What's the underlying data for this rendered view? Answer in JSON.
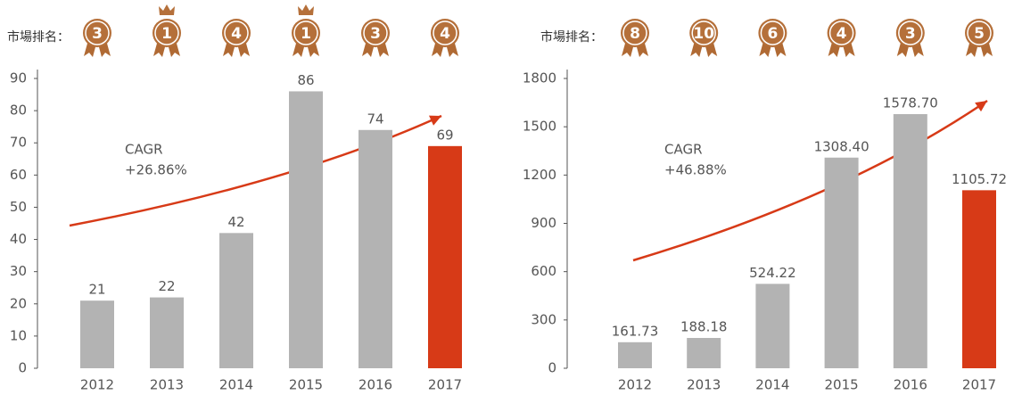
{
  "chart_data": [
    {
      "type": "bar",
      "rank_label": "市場排名：",
      "ranks": [
        3,
        1,
        4,
        1,
        3,
        4
      ],
      "annotations": [
        "CAGR",
        "+26.86%"
      ],
      "categories": [
        "2012",
        "2013",
        "2014",
        "2015",
        "2016",
        "2017"
      ],
      "values": [
        21,
        22,
        42,
        86,
        74,
        69
      ],
      "colors": [
        "#b3b3b3",
        "#b3b3b3",
        "#b3b3b3",
        "#b3b3b3",
        "#b3b3b3",
        "#d73a17"
      ],
      "ylim": [
        0,
        90
      ],
      "yticks": [
        0,
        10,
        20,
        30,
        40,
        50,
        60,
        70,
        80,
        90
      ]
    },
    {
      "type": "bar",
      "rank_label": "市場排名：",
      "ranks": [
        8,
        10,
        6,
        4,
        3,
        5
      ],
      "annotations": [
        "CAGR",
        "+46.88%"
      ],
      "categories": [
        "2012",
        "2013",
        "2014",
        "2015",
        "2016",
        "2017"
      ],
      "values": [
        161.73,
        188.18,
        524.22,
        1308.4,
        1578.7,
        1105.72
      ],
      "value_labels": [
        "161.73",
        "188.18",
        "524.22",
        "1308.40",
        "1578.70",
        "1105.72"
      ],
      "colors": [
        "#b3b3b3",
        "#b3b3b3",
        "#b3b3b3",
        "#b3b3b3",
        "#b3b3b3",
        "#d73a17"
      ],
      "ylim": [
        0,
        1800
      ],
      "yticks": [
        0,
        300,
        600,
        900,
        1200,
        1500,
        1800
      ]
    }
  ]
}
